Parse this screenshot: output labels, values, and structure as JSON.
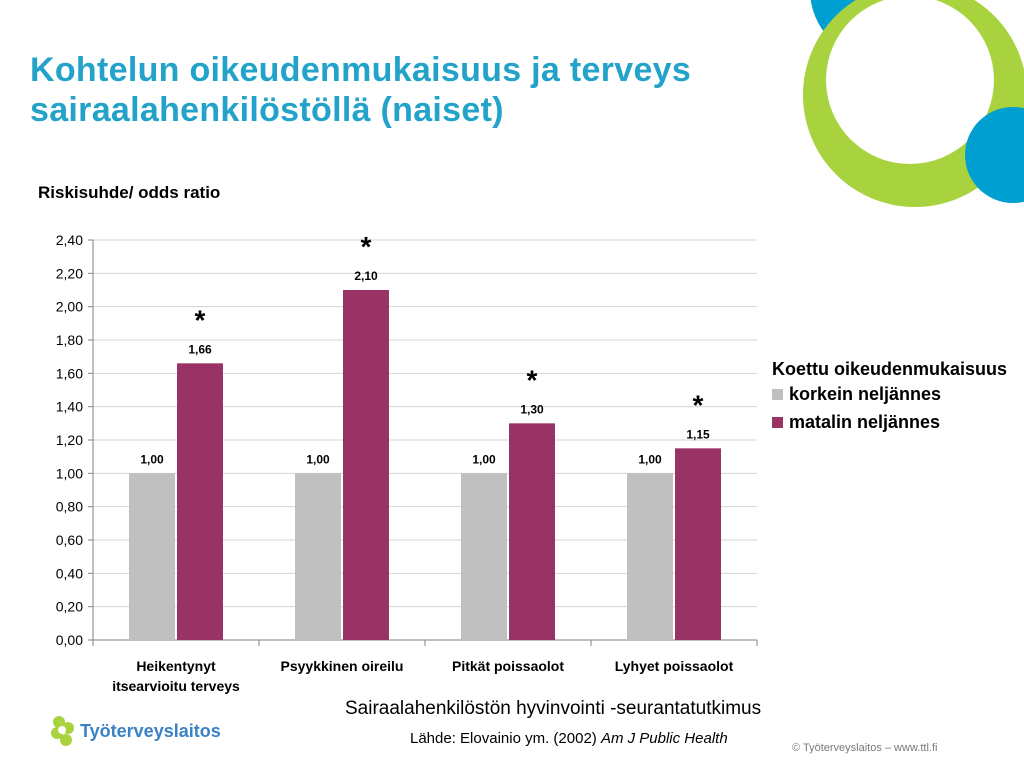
{
  "slide": {
    "title_line1": "Kohtelun oikeudenmukaisuus ja terveys",
    "title_line2": "sairaalahenkilöstöllä (naiset)",
    "study_name": "Sairaalahenkilöstön hyvinvointi -seurantatutkimus",
    "source_prefix": "Lähde: Elovainio ym. (2002) ",
    "source_journal": "Am J Public Health",
    "logo_text": "Työterveyslaitos",
    "copyright": "© Työterveyslaitos   –   www.ttl.fi"
  },
  "colors": {
    "title": "#23a3c9",
    "korkein": "#c0c0c0",
    "matalin": "#993366",
    "deco_blue": "#009fd1",
    "deco_green": "#a8d23e"
  },
  "chart_data": {
    "type": "bar",
    "ylabel": "Riskisuhde/ odds ratio",
    "ylim": [
      0,
      2.4
    ],
    "yticks": [
      "0,00",
      "0,20",
      "0,40",
      "0,60",
      "0,80",
      "1,00",
      "1,20",
      "1,40",
      "1,60",
      "1,80",
      "2,00",
      "2,20",
      "2,40"
    ],
    "grid": true,
    "legend_title": "Koettu oikeudenmukaisuus",
    "legend_position": "right",
    "categories": [
      [
        "Heikentynyt",
        "itsearvioitu terveys"
      ],
      [
        "Psyykkinen oireilu"
      ],
      [
        "Pitkät poissaolot"
      ],
      [
        "Lyhyet poissaolot"
      ]
    ],
    "series": [
      {
        "name": "korkein neljännes",
        "values": [
          1.0,
          1.0,
          1.0,
          1.0
        ],
        "labels": [
          "1,00",
          "1,00",
          "1,00",
          "1,00"
        ],
        "significant": [
          false,
          false,
          false,
          false
        ]
      },
      {
        "name": "matalin neljännes",
        "values": [
          1.66,
          2.1,
          1.3,
          1.15
        ],
        "labels": [
          "1,66",
          "2,10",
          "1,30",
          "1,15"
        ],
        "significant": [
          true,
          true,
          true,
          true
        ]
      }
    ],
    "significance_marker": "*"
  }
}
